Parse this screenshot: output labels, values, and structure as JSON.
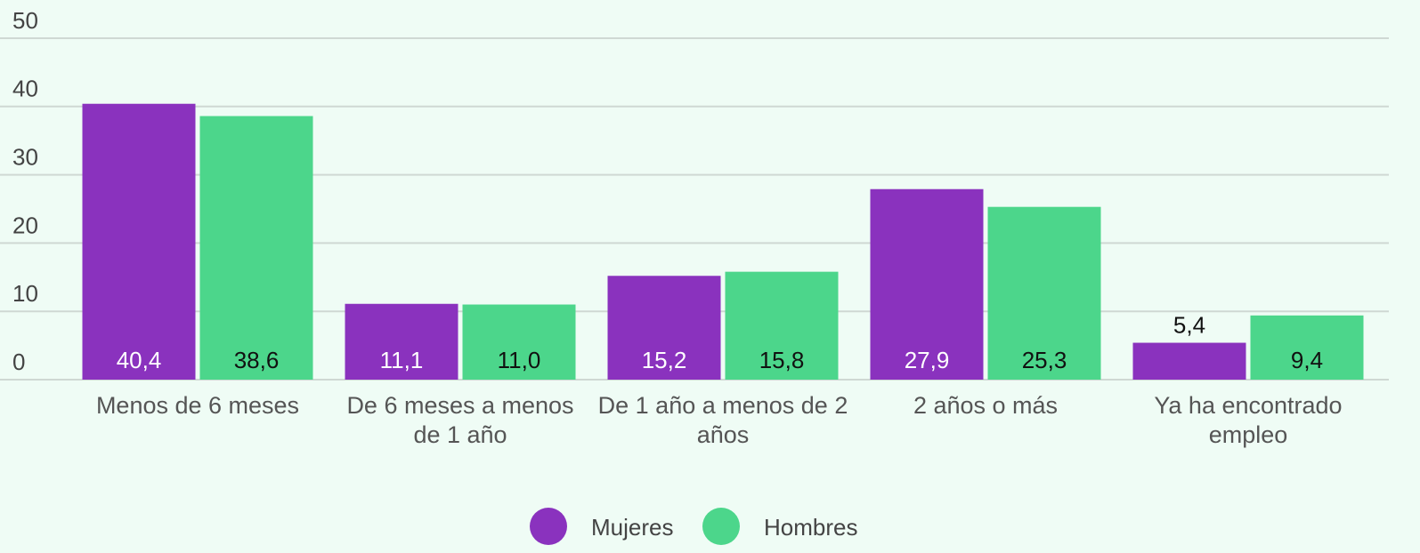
{
  "chart_data": {
    "type": "bar",
    "categories": [
      "Menos de 6 meses",
      "De 6 meses a menos de 1 año",
      "De 1 año a menos de 2 años",
      "2 años o más",
      "Ya ha encontrado empleo"
    ],
    "series": [
      {
        "name": "Mujeres",
        "color": "#8a32be",
        "values": [
          40.4,
          11.1,
          15.2,
          27.9,
          5.4
        ],
        "value_labels": [
          "40,4",
          "11,1",
          "15,2",
          "27,9",
          "5,4"
        ]
      },
      {
        "name": "Hombres",
        "color": "#4cd68b",
        "values": [
          38.6,
          11.0,
          15.8,
          25.3,
          9.4
        ],
        "value_labels": [
          "38,6",
          "11,0",
          "15,8",
          "25,3",
          "9,4"
        ]
      }
    ],
    "ylim": [
      0,
      50
    ],
    "yticks": [
      0,
      10,
      20,
      30,
      40,
      50
    ],
    "grid": true,
    "legend": "bottom"
  }
}
